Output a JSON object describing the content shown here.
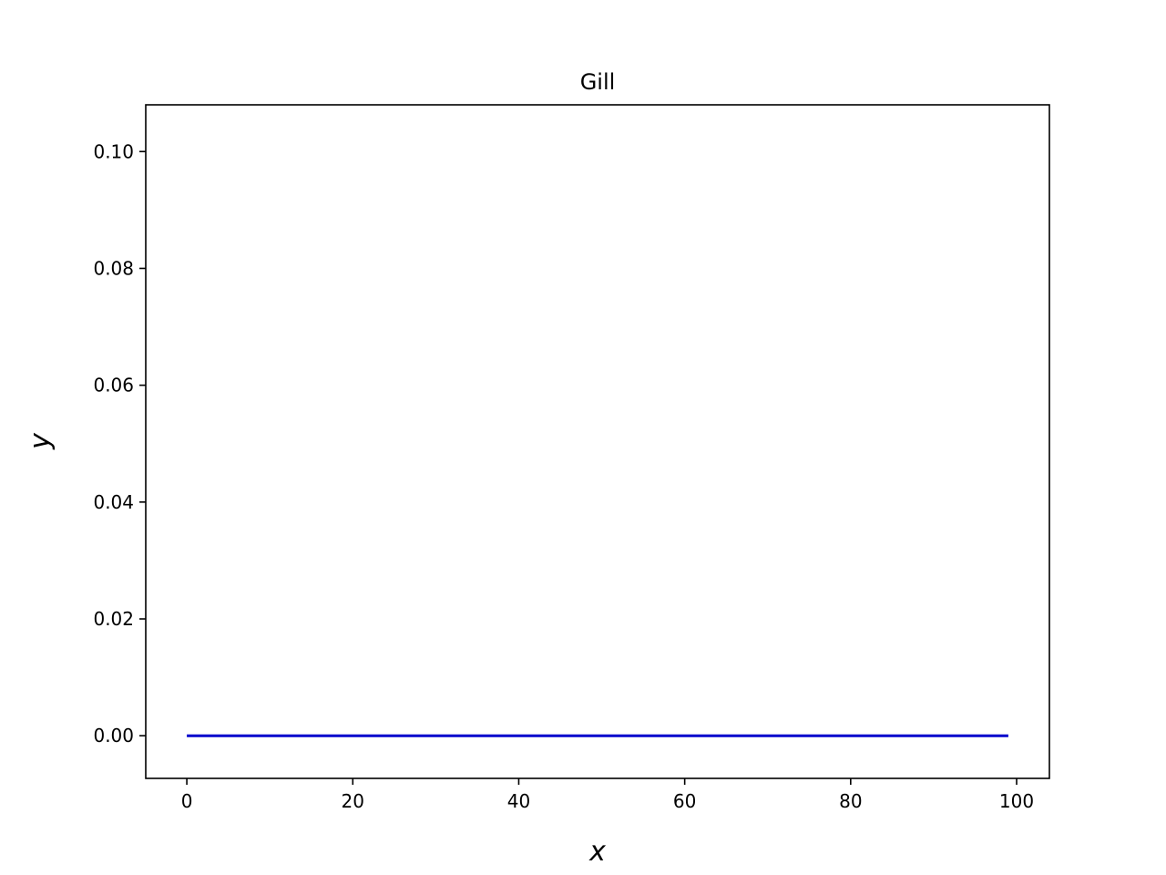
{
  "chart_data": {
    "type": "line",
    "title": "Gill",
    "xlabel": "x",
    "ylabel": "y",
    "xlim": [
      -4.95,
      103.95
    ],
    "ylim": [
      -0.0073,
      0.108
    ],
    "xticks": [
      0,
      20,
      40,
      60,
      80,
      100
    ],
    "xtick_labels": [
      "0",
      "20",
      "40",
      "60",
      "80",
      "100"
    ],
    "yticks": [
      0.0,
      0.02,
      0.04,
      0.06,
      0.08,
      0.1
    ],
    "ytick_labels": [
      "0.00",
      "0.02",
      "0.04",
      "0.06",
      "0.08",
      "0.10"
    ],
    "grid": false,
    "legend": "none",
    "series": [
      {
        "color": "#0000cc",
        "x": [
          0,
          99
        ],
        "y": [
          0.0,
          0.0
        ]
      }
    ]
  }
}
